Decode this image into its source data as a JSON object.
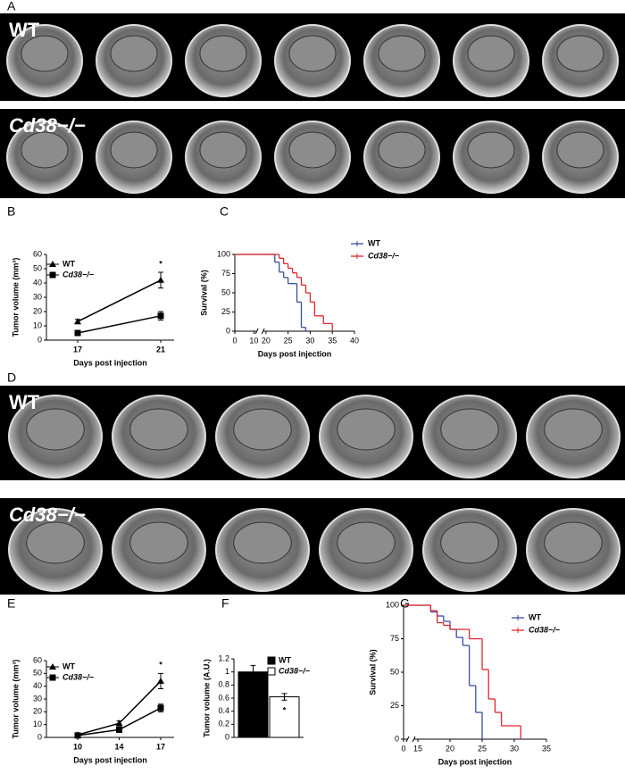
{
  "panels": [
    {
      "label": "A",
      "rows": [
        "WT",
        "Cd38−/−"
      ]
    },
    {
      "label": "D",
      "rows": [
        "WT",
        "Cd38−/−"
      ]
    }
  ],
  "chart_data": [
    {
      "panel": "B",
      "type": "line",
      "xlabel": "Days post injection",
      "ylabel": "Tumor volume (mm³)",
      "categories": [
        "17",
        "21"
      ],
      "series": [
        {
          "name": "WT",
          "color": "#000000",
          "marker": "triangle",
          "values": [
            13,
            42
          ],
          "errors": [
            1.5,
            5.5
          ]
        },
        {
          "name": "Cd38−/−",
          "color": "#000000",
          "marker": "square",
          "values": [
            5,
            17
          ],
          "errors": [
            0.8,
            3
          ]
        }
      ],
      "ylim": [
        0,
        60
      ],
      "yticks": [
        0,
        10,
        20,
        30,
        40,
        50,
        60
      ],
      "annotation": "*"
    },
    {
      "panel": "C",
      "type": "survival",
      "xlabel": "Days post injection",
      "ylabel": "Survival (%)",
      "series": [
        {
          "name": "WT",
          "color": "#3a4fa0",
          "x": [
            0,
            21,
            22,
            23,
            24,
            25,
            27,
            28,
            29
          ],
          "values": [
            100,
            100,
            90,
            77,
            70,
            62,
            38,
            5,
            0
          ]
        },
        {
          "name": "Cd38−/−",
          "color": "#e0252b",
          "x": [
            0,
            23,
            24,
            25,
            26,
            27,
            28,
            29,
            30,
            31,
            33,
            35
          ],
          "values": [
            100,
            95,
            88,
            82,
            76,
            70,
            60,
            50,
            38,
            20,
            10,
            0
          ]
        }
      ],
      "xlim": [
        0,
        40
      ],
      "xticks": [
        0,
        10,
        20,
        25,
        30,
        35,
        40
      ],
      "axis_break": [
        10,
        20
      ],
      "ylim": [
        0,
        100
      ],
      "yticks": [
        0,
        25,
        50,
        75,
        100
      ]
    },
    {
      "panel": "E",
      "type": "line",
      "xlabel": "Days post injection",
      "ylabel": "Tumor volume (mm³)",
      "categories": [
        "10",
        "14",
        "17"
      ],
      "series": [
        {
          "name": "WT",
          "color": "#000000",
          "marker": "triangle",
          "values": [
            2,
            11,
            44
          ],
          "errors": [
            0.5,
            2,
            6
          ]
        },
        {
          "name": "Cd38−/−",
          "color": "#000000",
          "marker": "square",
          "values": [
            1.5,
            6,
            23
          ],
          "errors": [
            0.5,
            1,
            3
          ]
        }
      ],
      "ylim": [
        0,
        60
      ],
      "yticks": [
        0,
        10,
        20,
        30,
        40,
        50,
        60
      ],
      "annotation": "*"
    },
    {
      "panel": "F",
      "type": "bar",
      "ylabel": "Tumor volume (A.U.)",
      "series": [
        {
          "name": "WT",
          "color": "#000000",
          "values": [
            1.0
          ],
          "errors": [
            0.1
          ]
        },
        {
          "name": "Cd38−/−",
          "color": "#ffffff",
          "values": [
            0.62
          ],
          "errors": [
            0.05
          ]
        }
      ],
      "ylim": [
        0,
        1.2
      ],
      "yticks": [
        0,
        0.2,
        0.4,
        0.6,
        0.8,
        1,
        1.2
      ],
      "annotation": "*"
    },
    {
      "panel": "G",
      "type": "survival",
      "xlabel": "Days post injection",
      "ylabel": "Survival (%)",
      "series": [
        {
          "name": "WT",
          "color": "#3a4fa0",
          "x": [
            0,
            17,
            18,
            19,
            20,
            21,
            22,
            23,
            24,
            25
          ],
          "values": [
            100,
            95,
            92,
            88,
            82,
            76,
            70,
            40,
            20,
            0
          ]
        },
        {
          "name": "Cd38−/−",
          "color": "#e0252b",
          "x": [
            0,
            17,
            18,
            19,
            20,
            23,
            25,
            26,
            27,
            28,
            31
          ],
          "values": [
            100,
            96,
            87,
            85,
            82,
            75,
            52,
            30,
            20,
            10,
            0
          ]
        }
      ],
      "xlim": [
        0,
        35
      ],
      "xticks": [
        0,
        15,
        20,
        25,
        30,
        35
      ],
      "axis_break": [
        0,
        15
      ],
      "ylim": [
        0,
        100
      ],
      "yticks": [
        0,
        25,
        50,
        75,
        100
      ]
    }
  ]
}
